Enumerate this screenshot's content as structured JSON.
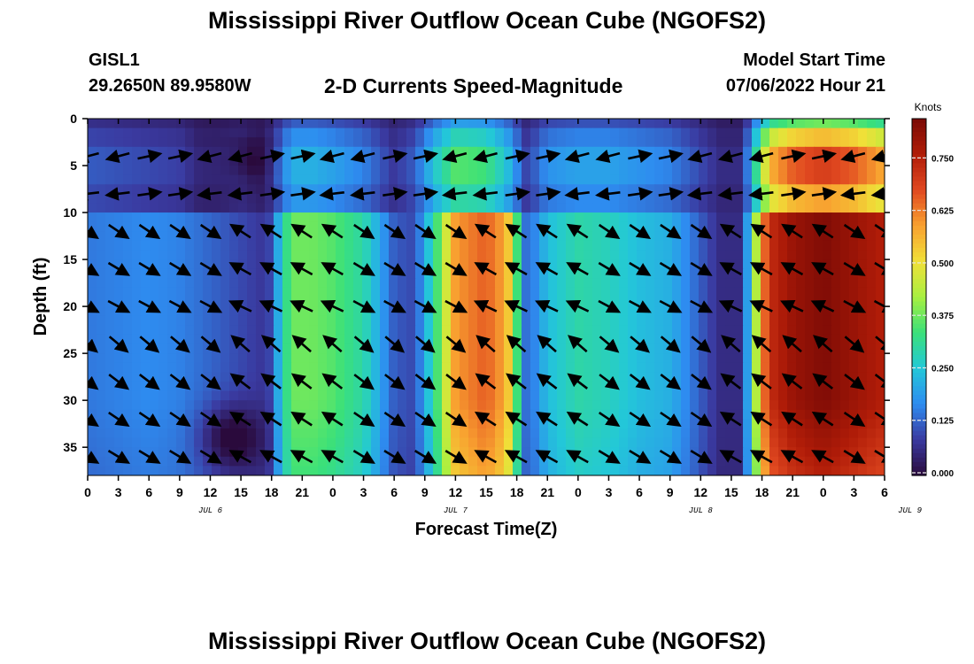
{
  "header": {
    "title": "Mississippi River Outflow Ocean Cube (NGOFS2)",
    "station_id": "GISL1",
    "station_coords": "29.2650N  89.9580W",
    "subtitle": "2-D Currents Speed-Magnitude",
    "model_start_label": "Model Start Time",
    "model_start_value": "07/06/2022 Hour 21"
  },
  "footer": {
    "title": "Mississippi River Outflow Ocean Cube (NGOFS2)"
  },
  "chart_data": {
    "type": "heatmap",
    "title": "2-D Currents Speed-Magnitude",
    "xlabel": "Forecast Time(Z)",
    "ylabel": "Depth (ft)",
    "x_range_hours": [
      0,
      78
    ],
    "xlim": [
      "07/06/2022 00Z",
      "07/09/2022 06Z"
    ],
    "x_tick_labels": [
      "0",
      "3",
      "6",
      "9",
      "12",
      "15",
      "18",
      "21",
      "0",
      "3",
      "6",
      "9",
      "12",
      "15",
      "18",
      "21",
      "0",
      "3",
      "6",
      "9",
      "12",
      "15",
      "18",
      "21",
      "0",
      "3",
      "6"
    ],
    "day_labels": [
      {
        "label": "JUL 6",
        "hour": 12
      },
      {
        "label": "JUL 7",
        "hour": 36
      },
      {
        "label": "JUL 8",
        "hour": 60
      },
      {
        "label": "JUL 9",
        "hour": 84
      }
    ],
    "ylim": [
      0,
      38
    ],
    "y_inverted": true,
    "y_tick_labels": [
      "0",
      "5",
      "10",
      "15",
      "20",
      "25",
      "30",
      "35"
    ],
    "y_tick_values": [
      0,
      5,
      10,
      15,
      20,
      25,
      30,
      35
    ],
    "colorbar": {
      "unit": "Knots",
      "range": [
        0,
        0.85
      ],
      "tick_values": [
        0.0,
        0.125,
        0.25,
        0.375,
        0.5,
        0.625,
        0.75
      ],
      "tick_labels": [
        "0.000",
        "0.125",
        "0.250",
        "0.375",
        "0.500",
        "0.625",
        "0.750"
      ],
      "colormap": [
        "#2a0a3c",
        "#3a3aa0",
        "#2e8cf0",
        "#23c8d8",
        "#3ae07a",
        "#a8f040",
        "#f0e038",
        "#f8a030",
        "#e04820",
        "#b01c08",
        "#7a0a05"
      ]
    },
    "speed_profile_knots": {
      "hours": [
        0,
        3,
        6,
        9,
        11,
        13,
        15,
        17,
        18,
        19,
        20,
        22,
        24,
        27,
        30,
        32,
        34,
        36,
        39,
        41,
        43,
        45,
        48,
        51,
        54,
        57,
        60,
        62,
        64,
        65,
        66,
        67,
        69,
        72,
        75,
        78
      ],
      "surface_layer": [
        0.12,
        0.11,
        0.1,
        0.09,
        0.05,
        0.05,
        0.07,
        0.05,
        0.08,
        0.16,
        0.22,
        0.22,
        0.2,
        0.16,
        0.08,
        0.12,
        0.26,
        0.36,
        0.34,
        0.25,
        0.09,
        0.18,
        0.2,
        0.2,
        0.18,
        0.16,
        0.1,
        0.06,
        0.06,
        0.22,
        0.44,
        0.58,
        0.66,
        0.7,
        0.66,
        0.58
      ],
      "middle_layer": [
        0.15,
        0.16,
        0.17,
        0.16,
        0.14,
        0.12,
        0.1,
        0.08,
        0.1,
        0.28,
        0.38,
        0.38,
        0.36,
        0.3,
        0.12,
        0.1,
        0.32,
        0.6,
        0.66,
        0.58,
        0.12,
        0.24,
        0.3,
        0.28,
        0.24,
        0.22,
        0.12,
        0.06,
        0.06,
        0.3,
        0.62,
        0.74,
        0.8,
        0.84,
        0.8,
        0.76
      ]
    },
    "vectors": "current direction arrows at every 3-hour column and depth rows 4, 8, 12, 16, 20, 24, 28, 32, 36 ft"
  }
}
